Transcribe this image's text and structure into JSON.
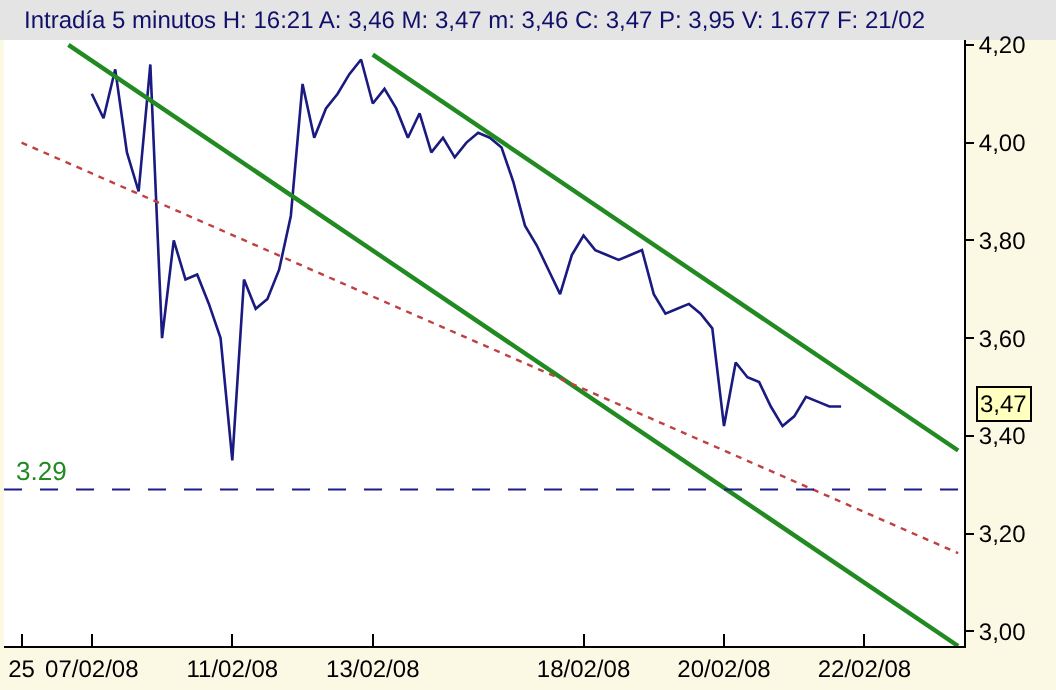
{
  "chart_data": {
    "type": "line",
    "title": "Intradía 5 minutos H: 16:21 A: 3,46 M: 3,47 m: 3,46 C: 3,47 P: 3,95 V: 1.677 F: 21/02",
    "categories": [
      null,
      "25",
      null,
      null,
      null,
      null,
      null,
      "07/02/08",
      null,
      null,
      null,
      null,
      null,
      null,
      null,
      null,
      null,
      null,
      null,
      "11/02/08",
      null,
      null,
      null,
      null,
      null,
      null,
      null,
      null,
      null,
      null,
      null,
      "13/02/08",
      null,
      null,
      null,
      null,
      null,
      null,
      null,
      null,
      null,
      null,
      null,
      null,
      null,
      null,
      null,
      null,
      null,
      "18/02/08",
      null,
      null,
      null,
      null,
      null,
      null,
      null,
      null,
      null,
      null,
      null,
      "20/02/08",
      null,
      null,
      null,
      null,
      null,
      null,
      null,
      null,
      null,
      null,
      null,
      "22/02/08",
      null,
      null,
      null,
      null,
      null,
      null,
      null,
      null
    ],
    "series": [
      {
        "color": "#1a1a80",
        "values": [
          null,
          null,
          null,
          null,
          null,
          null,
          null,
          4.1,
          4.05,
          4.15,
          3.98,
          3.9,
          4.16,
          3.6,
          3.8,
          3.72,
          3.73,
          3.67,
          3.6,
          3.35,
          3.72,
          3.66,
          3.68,
          3.74,
          3.85,
          4.12,
          4.01,
          4.07,
          4.1,
          4.14,
          4.17,
          4.08,
          4.11,
          4.07,
          4.01,
          4.06,
          3.98,
          4.01,
          3.97,
          4.0,
          4.02,
          4.01,
          3.99,
          3.92,
          3.83,
          3.79,
          3.74,
          3.69,
          3.77,
          3.81,
          3.78,
          3.77,
          3.76,
          3.77,
          3.78,
          3.69,
          3.65,
          3.66,
          3.67,
          3.65,
          3.62,
          3.42,
          3.55,
          3.52,
          3.51,
          3.46,
          3.42,
          3.44,
          3.48,
          3.47,
          3.46,
          3.46,
          null,
          null,
          null,
          null,
          null,
          null,
          null,
          null,
          null,
          null
        ]
      },
      {
        "type": "line",
        "color": "#218a21",
        "values": [
          null,
          null,
          null,
          null,
          null,
          4.2,
          null,
          null,
          null,
          null,
          null,
          null,
          null,
          null,
          null,
          null,
          null,
          null,
          null,
          null,
          null,
          null,
          null,
          null,
          null,
          null,
          null,
          null,
          null,
          null,
          null,
          null,
          null,
          null,
          null,
          null,
          null,
          null,
          null,
          null,
          null,
          null,
          null,
          null,
          null,
          null,
          null,
          null,
          null,
          null,
          null,
          null,
          null,
          null,
          null,
          null,
          null,
          null,
          null,
          null,
          null,
          null,
          null,
          null,
          null,
          null,
          null,
          null,
          null,
          null,
          null,
          null,
          null,
          null,
          null,
          null,
          null,
          null,
          null,
          null,
          null,
          2.97
        ]
      },
      {
        "type": "line",
        "color": "#218a21",
        "values": [
          null,
          null,
          null,
          null,
          null,
          null,
          null,
          null,
          null,
          null,
          null,
          null,
          null,
          null,
          null,
          null,
          null,
          null,
          null,
          null,
          null,
          null,
          null,
          null,
          null,
          null,
          null,
          null,
          null,
          null,
          null,
          4.18,
          null,
          null,
          null,
          null,
          null,
          null,
          null,
          null,
          null,
          null,
          null,
          null,
          null,
          null,
          null,
          null,
          null,
          null,
          null,
          null,
          null,
          null,
          null,
          null,
          null,
          null,
          null,
          null,
          null,
          null,
          null,
          null,
          null,
          null,
          null,
          null,
          null,
          null,
          null,
          null,
          null,
          null,
          null,
          null,
          null,
          null,
          null,
          null,
          null,
          3.37
        ]
      },
      {
        "type": "line",
        "color": "#c04040",
        "line_style": "dotted",
        "values": [
          null,
          4.0,
          null,
          null,
          null,
          null,
          null,
          null,
          null,
          null,
          null,
          null,
          null,
          null,
          null,
          null,
          null,
          null,
          null,
          null,
          null,
          null,
          null,
          null,
          null,
          null,
          null,
          null,
          null,
          null,
          null,
          null,
          null,
          null,
          null,
          null,
          null,
          null,
          null,
          null,
          null,
          null,
          null,
          null,
          null,
          null,
          null,
          null,
          null,
          null,
          null,
          null,
          null,
          null,
          null,
          null,
          null,
          null,
          null,
          null,
          null,
          null,
          null,
          null,
          null,
          null,
          null,
          null,
          null,
          null,
          null,
          null,
          null,
          null,
          null,
          null,
          null,
          null,
          null,
          null,
          null,
          3.16
        ]
      }
    ],
    "ylim": [
      2.97,
      4.21
    ],
    "yticks": [
      {
        "value": 3.0,
        "label": "3,00"
      },
      {
        "value": 3.2,
        "label": "3,20"
      },
      {
        "value": 3.4,
        "label": "3,40"
      },
      {
        "value": 3.6,
        "label": "3,60"
      },
      {
        "value": 3.8,
        "label": "3,80"
      },
      {
        "value": 4.0,
        "label": "4,00"
      },
      {
        "value": 4.2,
        "label": "4,20"
      }
    ],
    "ref_lines": [
      {
        "axis": "y",
        "value": 3.29,
        "label": "3.29",
        "color": "#1c1c8c",
        "line_style": "dashed"
      }
    ],
    "annotations": [
      "3,47"
    ]
  }
}
